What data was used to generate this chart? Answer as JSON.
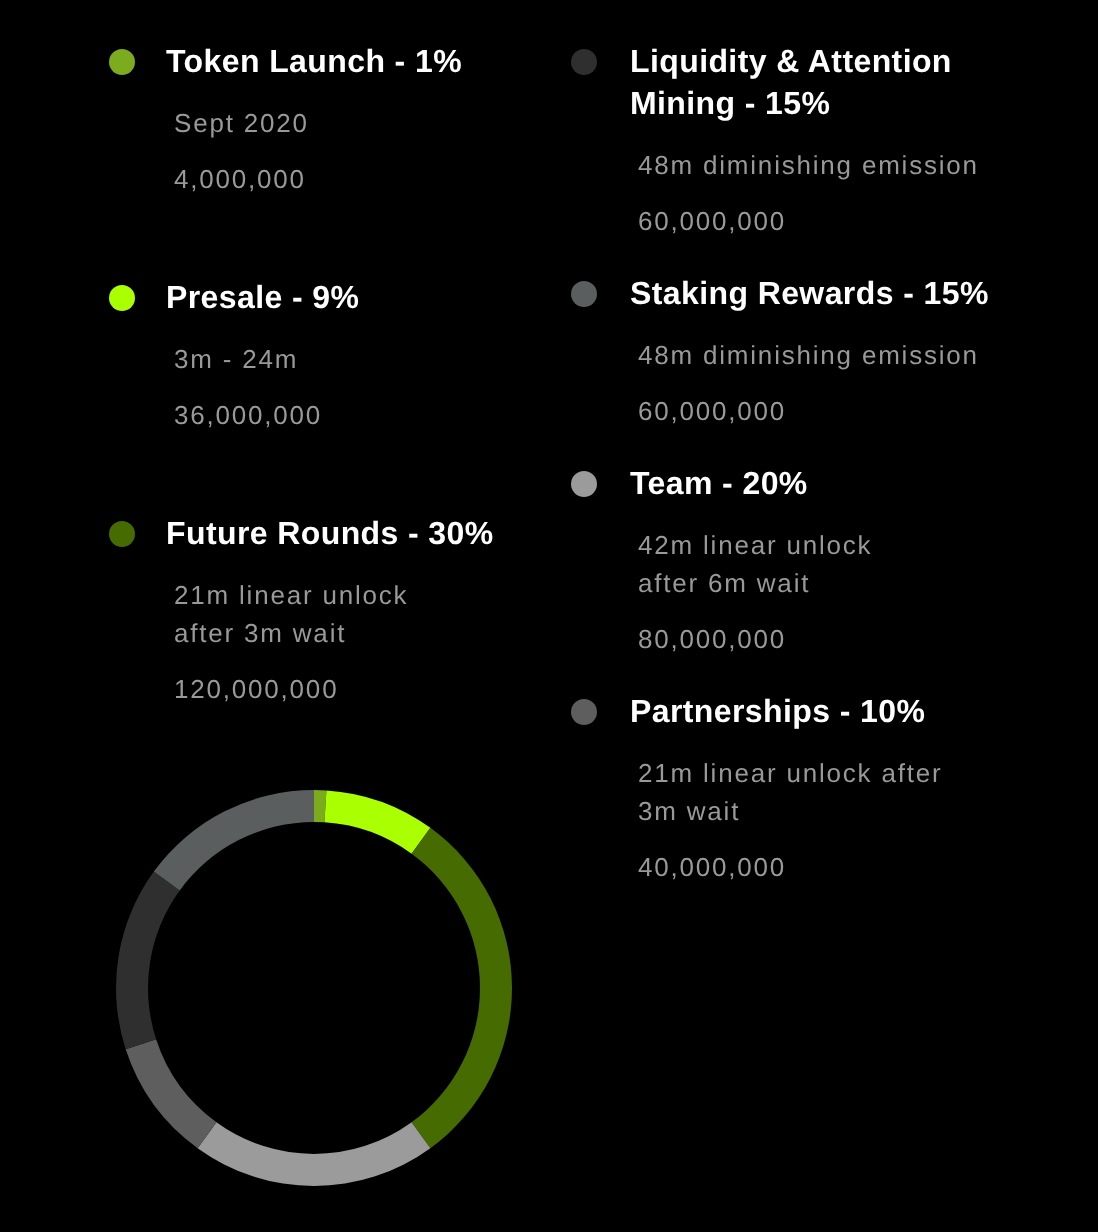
{
  "chart_data": {
    "type": "donut",
    "categories": [
      "Token Launch - 1%",
      "Presale - 9%",
      "Future Rounds - 30%",
      "Team - 20%",
      "Partnerships - 10%",
      "Liquidity & Attention Mining - 15%",
      "Staking Rewards - 15%"
    ],
    "values": [
      1,
      9,
      30,
      20,
      10,
      15,
      15
    ],
    "colors": [
      "#7cab1d",
      "#aaff00",
      "#466b00",
      "#9b9b9b",
      "#5e5e5e",
      "#2f2f2f",
      "#5b5e5e"
    ],
    "legend": "top",
    "annotations": [
      {
        "text": "Sept 2020",
        "x": "Token Launch - 1%"
      },
      {
        "text": "4,000,000",
        "x": "Token Launch - 1%"
      },
      {
        "text": "3m - 24m",
        "x": "Presale - 9%"
      },
      {
        "text": "36,000,000",
        "x": "Presale - 9%"
      },
      {
        "text": "21m linear unlock\nafter 3m wait",
        "x": "Future Rounds - 30%"
      },
      {
        "text": "120,000,000",
        "x": "Future Rounds - 30%"
      },
      {
        "text": "42m linear unlock\nafter 6m wait",
        "x": "Team - 20%"
      },
      {
        "text": "80,000,000",
        "x": "Team - 20%"
      },
      {
        "text": "21m linear unlock after\n3m wait",
        "x": "Partnerships - 10%"
      },
      {
        "text": "40,000,000",
        "x": "Partnerships - 10%"
      },
      {
        "text": "48m diminishing emission",
        "x": "Liquidity & Attention Mining - 15%"
      },
      {
        "text": "60,000,000",
        "x": "Liquidity & Attention Mining - 15%"
      },
      {
        "text": "48m diminishing emission",
        "x": "Staking Rewards - 15%"
      },
      {
        "text": "60,000,000",
        "x": "Staking Rewards - 15%"
      }
    ]
  }
}
